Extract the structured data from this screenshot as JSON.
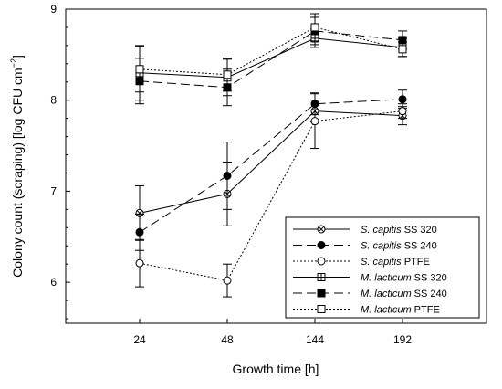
{
  "chart_data": {
    "type": "line",
    "xlabel": "Growth time [h]",
    "ylabel": "Colony count (scraping) [log CFU cm",
    "ylabel_sup": "−2",
    "ylabel_end": "]",
    "x_categories": [
      "24",
      "48",
      "144",
      "192"
    ],
    "yticks": [
      "6",
      "7",
      "8",
      "9"
    ],
    "ylim": [
      5.55,
      9.0
    ],
    "grid": false,
    "legend_position": "bottom-right",
    "series": [
      {
        "species": "S. capitis",
        "surface": "SS 320",
        "values": [
          6.76,
          6.97,
          7.88,
          7.83
        ],
        "errors": [
          0.3,
          0.35,
          0.12,
          0.1
        ],
        "marker": "circle-x",
        "line": "solid"
      },
      {
        "species": "S. capitis",
        "surface": "SS 240",
        "values": [
          6.55,
          7.17,
          7.96,
          8.01
        ],
        "errors": [
          0.2,
          0.37,
          0.12,
          0.1
        ],
        "marker": "filled-circle",
        "line": "long-dash"
      },
      {
        "species": "S. capitis",
        "surface": "PTFE",
        "values": [
          6.21,
          6.02,
          7.77,
          7.88
        ],
        "errors": [
          0.26,
          0.18,
          0.3,
          0.08
        ],
        "marker": "open-circle",
        "line": "dotted"
      },
      {
        "species": "M. lacticum",
        "surface": "SS 320",
        "values": [
          8.3,
          8.25,
          8.68,
          8.58
        ],
        "errors": [
          0.3,
          0.2,
          0.1,
          0.1
        ],
        "marker": "crossed-square",
        "line": "solid"
      },
      {
        "species": "M. lacticum",
        "surface": "SS 240",
        "values": [
          8.21,
          8.14,
          8.76,
          8.66
        ],
        "errors": [
          0.25,
          0.2,
          0.15,
          0.1
        ],
        "marker": "filled-square",
        "line": "long-dash"
      },
      {
        "species": "M. lacticum",
        "surface": "PTFE",
        "values": [
          8.34,
          8.28,
          8.8,
          8.56
        ],
        "errors": [
          0.25,
          0.18,
          0.15,
          0.08
        ],
        "marker": "open-square",
        "line": "dotted"
      }
    ]
  }
}
